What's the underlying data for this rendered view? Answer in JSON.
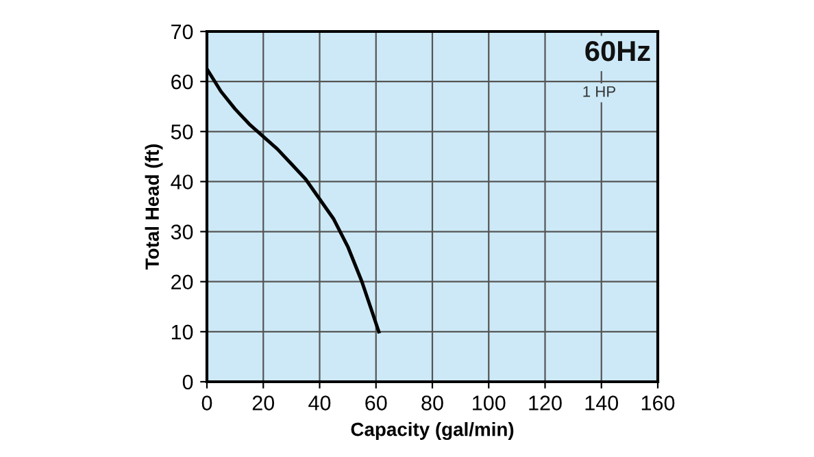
{
  "chart_data": {
    "type": "line",
    "xlabel": "Capacity (gal/min)",
    "ylabel": "Total Head (ft)",
    "x": [
      0,
      5,
      10,
      15,
      20,
      25,
      30,
      35,
      40,
      45,
      50,
      55,
      58,
      61
    ],
    "series": [
      {
        "color": "#000000",
        "values": [
          62.5,
          58,
          54.5,
          51.5,
          49,
          46.5,
          43.5,
          40.5,
          36.5,
          32.5,
          27,
          20,
          15,
          10
        ]
      }
    ],
    "xlim": [
      0,
      160
    ],
    "xticks": [
      0,
      20,
      40,
      60,
      80,
      100,
      120,
      140,
      160
    ],
    "ylim": [
      0,
      70
    ],
    "yticks": [
      0,
      10,
      20,
      30,
      40,
      50,
      60,
      70
    ],
    "grid": true,
    "marker": "none",
    "line_style": "solid",
    "annotations": [
      "60Hz",
      "1 HP"
    ]
  }
}
